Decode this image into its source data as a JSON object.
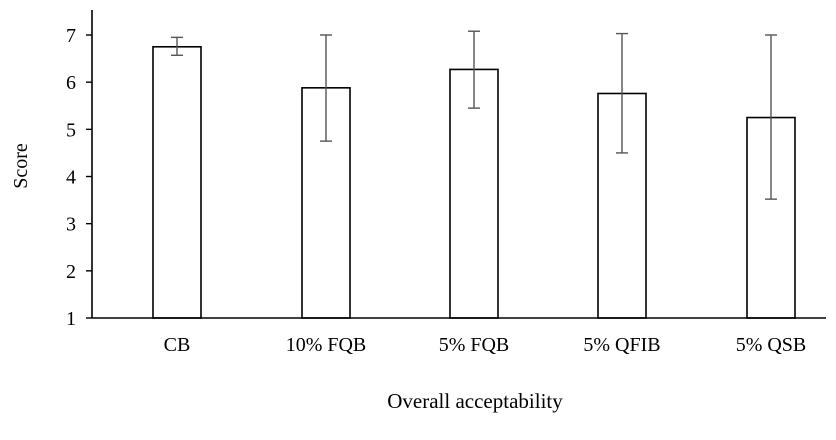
{
  "chart_data": {
    "type": "bar",
    "title": "",
    "xlabel": "Overall acceptability",
    "ylabel": "Score",
    "categories": [
      "CB",
      "10% FQB",
      "5% FQB",
      "5% QFIB",
      "5% QSB"
    ],
    "series": [
      {
        "values": [
          6.75,
          5.88,
          6.27,
          5.76,
          5.25
        ],
        "error_upper": [
          6.95,
          7.0,
          7.08,
          7.03,
          7.0
        ],
        "error_lower": [
          6.57,
          4.75,
          5.45,
          4.5,
          3.52
        ]
      }
    ],
    "ylim": [
      1,
      7
    ],
    "yticks": [
      "1",
      "2",
      "3",
      "4",
      "5",
      "6",
      "7"
    ],
    "grid": false,
    "legend": "none",
    "colors": {
      "bar_fill": "#ffffff",
      "bar_stroke": "#000000",
      "axis": "#000000",
      "error_bar": "#555555"
    }
  }
}
